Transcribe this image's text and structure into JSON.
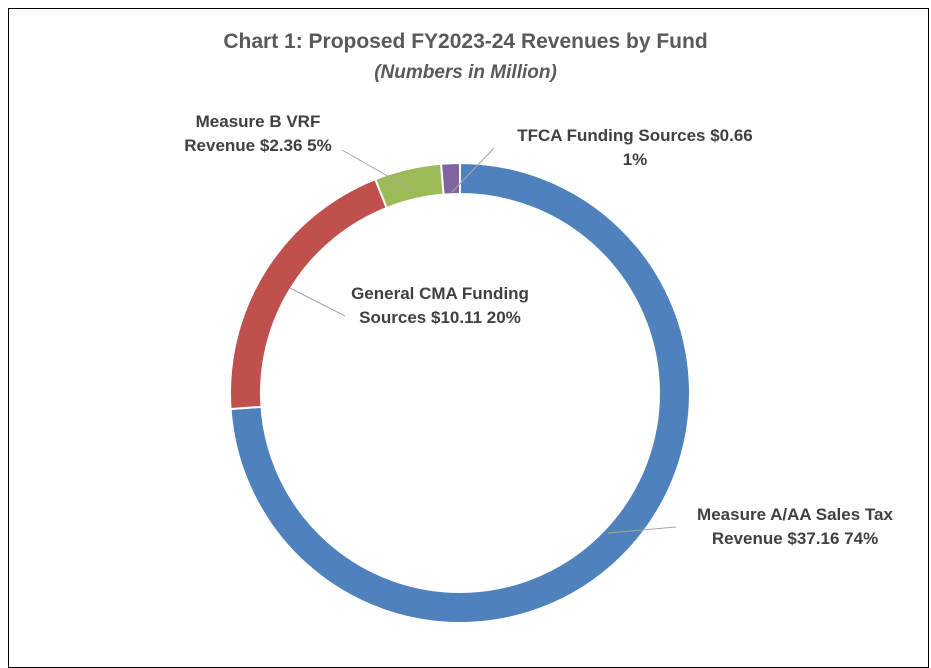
{
  "chart_data": {
    "type": "donut",
    "title": "Chart 1: Proposed FY2023-24 Revenues by Fund",
    "subtitle": "(Numbers in Million)",
    "categories": [
      "Measure A/AA Sales Tax Revenue",
      "General CMA Funding Sources",
      "Measure B VRF Revenue",
      "TFCA Funding Sources"
    ],
    "values": [
      37.16,
      10.11,
      2.36,
      0.66
    ],
    "value_labels": [
      "$37.16",
      "$10.11",
      "$2.36",
      "$0.66"
    ],
    "percent_labels": [
      "74%",
      "20%",
      "5%",
      "1%"
    ],
    "colors": [
      "#4f81bd",
      "#c0504d",
      "#9bbb59",
      "#8064a2"
    ]
  }
}
